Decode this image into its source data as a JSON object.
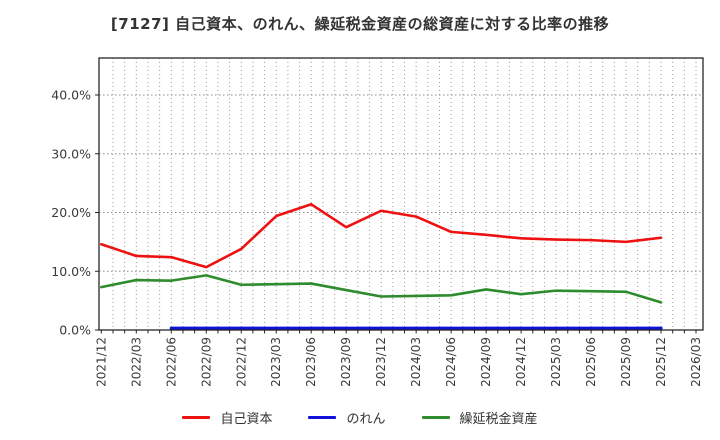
{
  "title": "[7127]  自己資本、のれん、繰延税金資産の総資産に対する比率の推移",
  "chart_data": {
    "type": "line",
    "title": "[7127]  自己資本、のれん、繰延税金資産の総資産に対する比率の推移",
    "x_tick_labels": [
      "2021/12",
      "2022/03",
      "2022/06",
      "2022/09",
      "2022/12",
      "2023/03",
      "2023/06",
      "2023/09",
      "2023/12",
      "2024/03",
      "2024/06",
      "2024/09",
      "2024/12",
      "2025/03",
      "2025/06",
      "2025/09",
      "2025/12",
      "2026/03"
    ],
    "x_months_per_tick": 3,
    "x_total_months": 51,
    "xlim_months": [
      -0.2,
      51.6
    ],
    "ylim": [
      0,
      46.3
    ],
    "y_ticks": [
      {
        "value": 0,
        "label": "0.0%"
      },
      {
        "value": 10,
        "label": "10.0%"
      },
      {
        "value": 20,
        "label": "20.0%"
      },
      {
        "value": 30,
        "label": "30.0%"
      },
      {
        "value": 40,
        "label": "40.0%"
      }
    ],
    "grid": {
      "vertical": "dotted-monthly",
      "horizontal": "dashed-at-yticks"
    },
    "legend_position": "bottom-center",
    "series": [
      {
        "name": "自己資本",
        "color": "#ee1111",
        "start_quarter_index": 0,
        "values": [
          14.6,
          12.6,
          12.4,
          10.7,
          13.8,
          19.4,
          21.4,
          17.5,
          20.3,
          19.3,
          16.7,
          16.2,
          15.6,
          15.4,
          15.3,
          15.0,
          15.7
        ]
      },
      {
        "name": "のれん",
        "color": "#1111dd",
        "start_quarter_index": 2,
        "values": [
          0.3,
          0.3,
          0.3,
          0.3,
          0.3,
          0.3,
          0.3,
          0.3,
          0.3,
          0.3,
          0.3,
          0.3,
          0.3,
          0.3,
          0.3
        ]
      },
      {
        "name": "繰延税金資産",
        "color": "#2e8b2e",
        "start_quarter_index": 0,
        "values": [
          7.3,
          8.5,
          8.4,
          9.3,
          7.7,
          7.8,
          7.9,
          6.8,
          5.7,
          5.8,
          5.9,
          6.9,
          6.1,
          6.7,
          6.6,
          6.5,
          4.7
        ]
      }
    ]
  }
}
